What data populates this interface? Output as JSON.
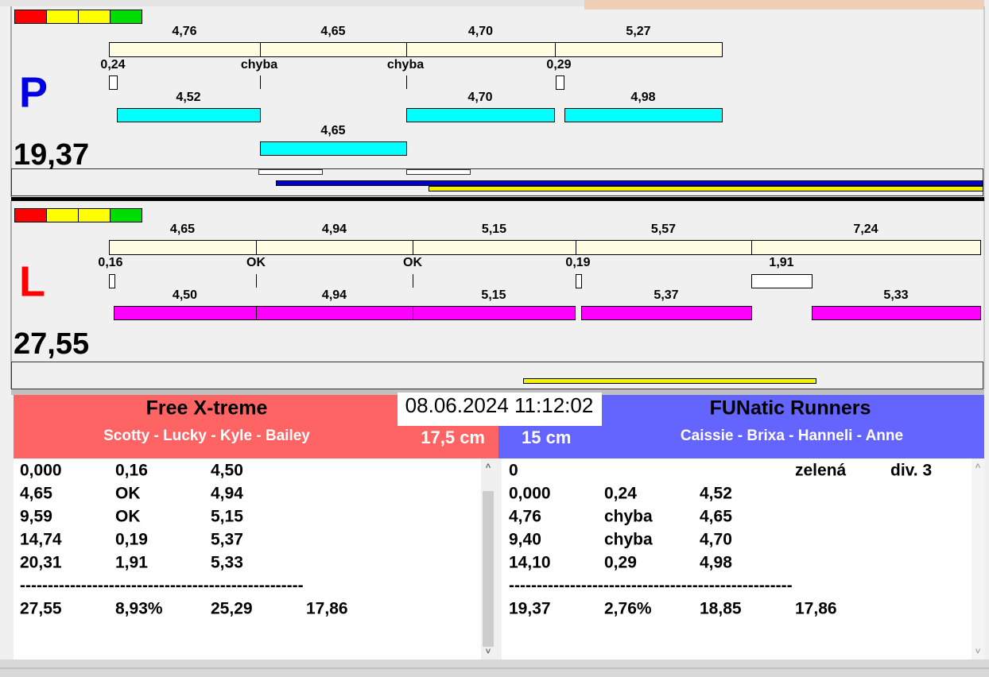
{
  "lanes": [
    {
      "letter": "P",
      "total": "19,37",
      "run_times": [
        "4,76",
        "4,65",
        "4,70",
        "5,27"
      ],
      "pass_labels": [
        "0,24",
        "chyba",
        "chyba",
        "0,29"
      ],
      "dog_times": [
        "4,52",
        "4,70",
        "4,98",
        "4,65"
      ]
    },
    {
      "letter": "L",
      "total": "27,55",
      "run_times": [
        "4,65",
        "4,94",
        "5,15",
        "5,57",
        "7,24"
      ],
      "pass_labels": [
        "0,16",
        "OK",
        "OK",
        "0,19",
        "1,91"
      ],
      "dog_times": [
        "4,50",
        "4,94",
        "5,15",
        "5,37",
        "5,33"
      ]
    }
  ],
  "datetime": "08.06.2024 11:12:02",
  "teams": {
    "left": {
      "name": "Free X-treme",
      "members": "Scotty - Lucky - Kyle - Bailey",
      "height": "17,5 cm"
    },
    "right": {
      "name": "FUNatic Runners",
      "members": "Caissie - Brixa - Hanneli - Anne",
      "height": "15 cm"
    }
  },
  "tables": {
    "left": {
      "rows": [
        [
          "0,000",
          "0,16",
          "4,50"
        ],
        [
          "4,65",
          "OK",
          "4,94"
        ],
        [
          "9,59",
          "OK",
          "5,15"
        ],
        [
          "14,74",
          "0,19",
          "5,37"
        ],
        [
          "20,31",
          "1,91",
          "5,33"
        ]
      ],
      "separator": "---------------------------------------------------",
      "summary": [
        "27,55",
        "8,93%",
        "25,29",
        "17,86"
      ]
    },
    "right": {
      "rows": [
        [
          "0",
          "",
          "",
          "zelená",
          "div. 3"
        ],
        [
          "0,000",
          "0,24",
          "4,52"
        ],
        [
          "4,76",
          "chyba",
          "4,65"
        ],
        [
          "9,40",
          "chyba",
          "4,70"
        ],
        [
          "14,10",
          "0,29",
          "4,98"
        ]
      ],
      "separator": "---------------------------------------------------",
      "summary": [
        "19,37",
        "2,76%",
        "18,85",
        "17,86"
      ]
    }
  }
}
